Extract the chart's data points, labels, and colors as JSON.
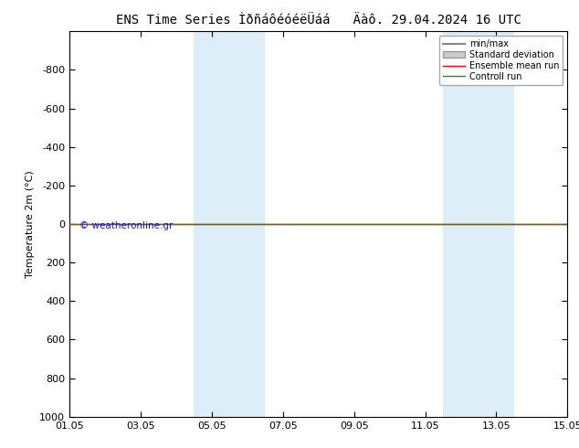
{
  "title": "ENS Time Series ÌðñáôéóéëÜáá   Äàô. 29.04.2024 16 UTC",
  "ylabel": "Temperature 2m (°C)",
  "xlim_start": 0,
  "xlim_end": 14,
  "ylim_bottom": 1000,
  "ylim_top": -1000,
  "yticks": [
    -800,
    -600,
    -400,
    -200,
    0,
    200,
    400,
    600,
    800,
    1000
  ],
  "xtick_labels": [
    "01.05",
    "03.05",
    "05.05",
    "07.05",
    "09.05",
    "11.05",
    "13.05",
    "15.05"
  ],
  "xtick_positions": [
    0,
    2,
    4,
    6,
    8,
    10,
    12,
    14
  ],
  "blue_bands": [
    {
      "x_start": 3.5,
      "x_end": 5.5
    },
    {
      "x_start": 10.5,
      "x_end": 12.5
    }
  ],
  "blue_band_color": "#ddeef8",
  "green_line_y": 0,
  "green_line_color": "#228B22",
  "red_line_color": "#ff0000",
  "watermark_text": "© weatheronline.gr",
  "watermark_color": "#0000cc",
  "legend_items": [
    "min/max",
    "Standard deviation",
    "Ensemble mean run",
    "Controll run"
  ],
  "legend_line_color": "#888888",
  "legend_std_color": "#cccccc",
  "legend_ens_color": "#ff0000",
  "legend_ctrl_color": "#228B22",
  "background_color": "#ffffff",
  "plot_bg_color": "#ffffff",
  "title_fontsize": 10,
  "axis_label_fontsize": 8,
  "tick_fontsize": 8
}
